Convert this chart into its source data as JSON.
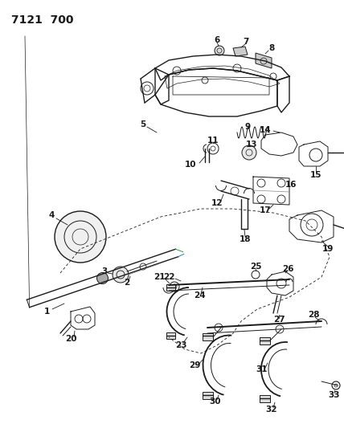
{
  "title": "7121  700",
  "bg_color": "#ffffff",
  "ink_color": "#1a1a1a",
  "title_fontsize": 10,
  "label_fontsize": 7,
  "fig_width": 4.28,
  "fig_height": 5.33,
  "dpi": 100
}
